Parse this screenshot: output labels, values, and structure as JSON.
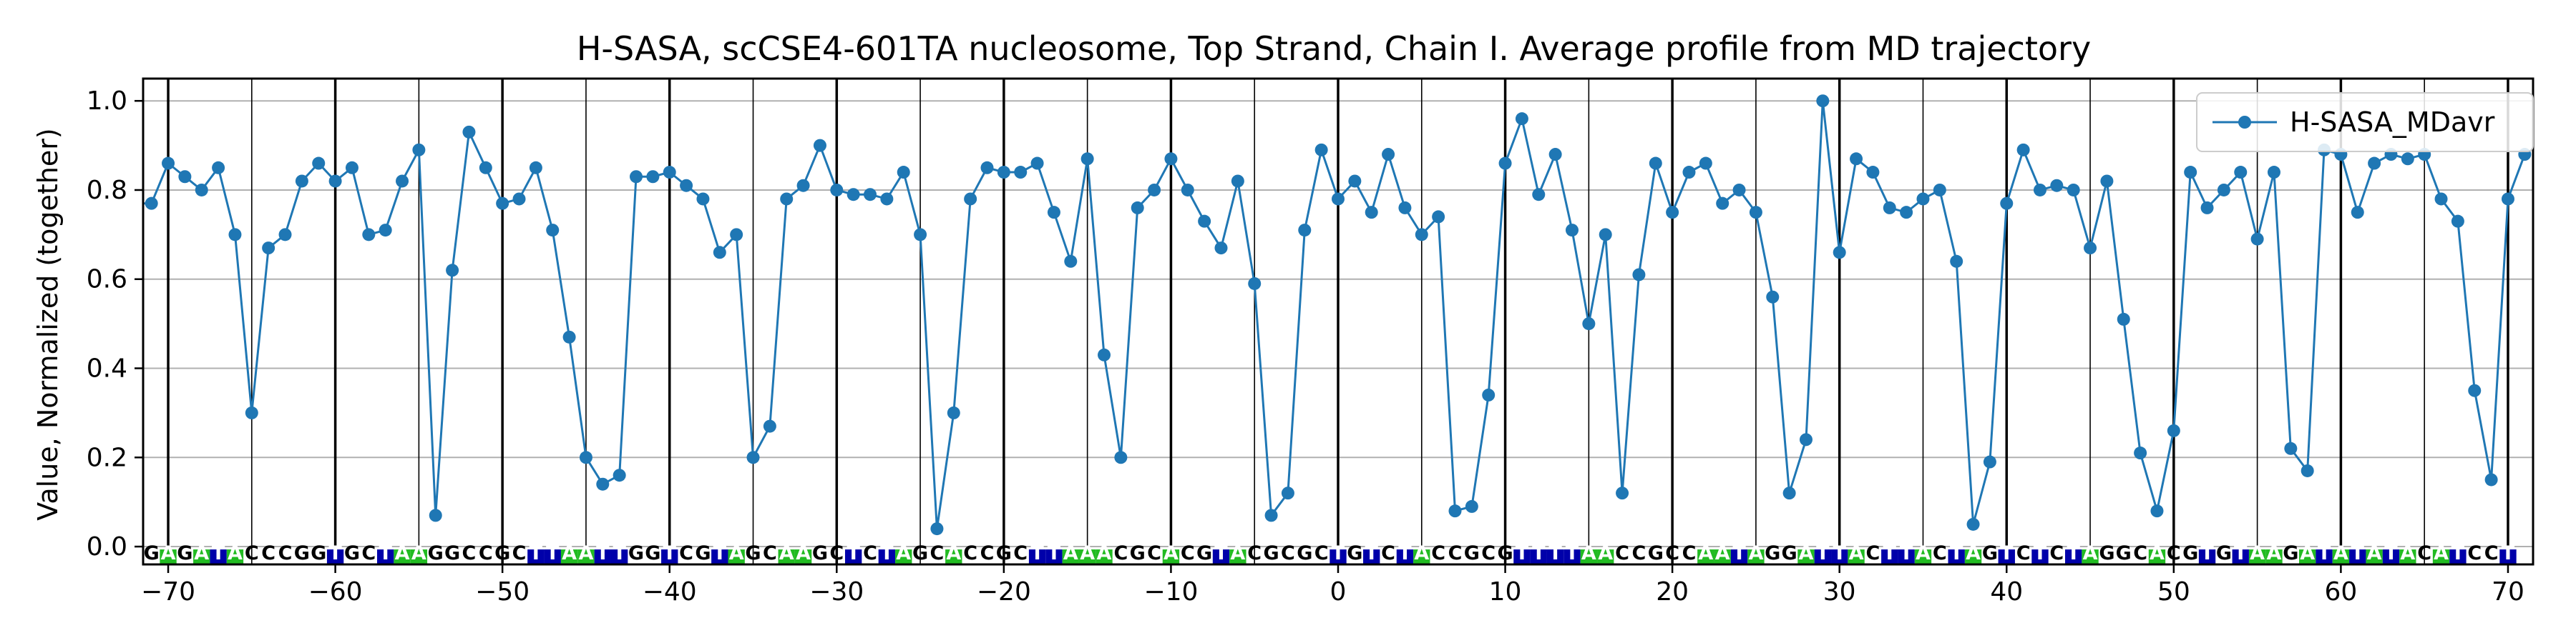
{
  "chart_data": {
    "type": "line",
    "title": "H-SASA, scCSE4-601TA nucleosome, Top Strand, Chain I. Average profile from MD trajectory",
    "xlabel": "",
    "ylabel": "Value, Normalized (together)",
    "xlim": [
      -71.5,
      71.5
    ],
    "ylim": [
      -0.04,
      1.05
    ],
    "xticks": [
      -70,
      -60,
      -50,
      -40,
      -30,
      -20,
      -10,
      0,
      10,
      20,
      30,
      40,
      50,
      60,
      70
    ],
    "xtick_labels": [
      "−70",
      "−60",
      "−50",
      "−40",
      "−30",
      "−20",
      "−10",
      "0",
      "10",
      "20",
      "30",
      "40",
      "50",
      "60",
      "70"
    ],
    "yticks": [
      0.0,
      0.2,
      0.4,
      0.6,
      0.8,
      1.0
    ],
    "ytick_labels": [
      "0.0",
      "0.2",
      "0.4",
      "0.6",
      "0.8",
      "1.0"
    ],
    "grid": "horizontal",
    "legend_position": "top-right",
    "sequence": "GGAGATACCCGGTGCTAAGGCCGCTTAATTGGTCGTAGCAAGCTCTAGCACCGCTTAAACGCACGTACGCGCTGTCTACCGCGTTTTAACCGCCAATAGGATTACTTACTAGTCTCTAGGCACGTGTAAGATATATACATCCT",
    "base_colors": {
      "A": "#22bb22",
      "T": "#0000aa",
      "G": "#ffffff",
      "C": "#ffffff"
    },
    "series": [
      {
        "name": "H-SASA_MDavr",
        "color": "#1f77b4",
        "x_start": -72,
        "x_step": 1,
        "values": [
          0.77,
          0.77,
          0.86,
          0.83,
          0.8,
          0.85,
          0.7,
          0.3,
          0.67,
          0.7,
          0.82,
          0.86,
          0.82,
          0.85,
          0.7,
          0.71,
          0.82,
          0.89,
          0.07,
          0.62,
          0.93,
          0.85,
          0.77,
          0.78,
          0.85,
          0.71,
          0.47,
          0.2,
          0.14,
          0.16,
          0.83,
          0.83,
          0.84,
          0.81,
          0.78,
          0.66,
          0.7,
          0.2,
          0.27,
          0.78,
          0.81,
          0.9,
          0.8,
          0.79,
          0.79,
          0.78,
          0.84,
          0.7,
          0.04,
          0.3,
          0.78,
          0.85,
          0.84,
          0.84,
          0.86,
          0.75,
          0.64,
          0.87,
          0.43,
          0.2,
          0.76,
          0.8,
          0.87,
          0.8,
          0.73,
          0.67,
          0.82,
          0.59,
          0.07,
          0.12,
          0.71,
          0.89,
          0.78,
          0.82,
          0.75,
          0.88,
          0.76,
          0.7,
          0.74,
          0.08,
          0.09,
          0.34,
          0.86,
          0.96,
          0.79,
          0.88,
          0.71,
          0.5,
          0.7,
          0.12,
          0.61,
          0.86,
          0.75,
          0.84,
          0.86,
          0.77,
          0.8,
          0.75,
          0.56,
          0.12,
          0.24,
          1.0,
          0.66,
          0.87,
          0.84,
          0.76,
          0.75,
          0.78,
          0.8,
          0.64,
          0.05,
          0.19,
          0.77,
          0.89,
          0.8,
          0.81,
          0.8,
          0.67,
          0.82,
          0.51,
          0.21,
          0.08,
          0.26,
          0.84,
          0.76,
          0.8,
          0.84,
          0.69,
          0.84,
          0.22,
          0.17,
          0.89,
          0.88,
          0.75,
          0.86,
          0.88,
          0.87,
          0.88,
          0.78,
          0.73,
          0.35,
          0.15,
          0.78,
          0.88
        ]
      }
    ]
  }
}
